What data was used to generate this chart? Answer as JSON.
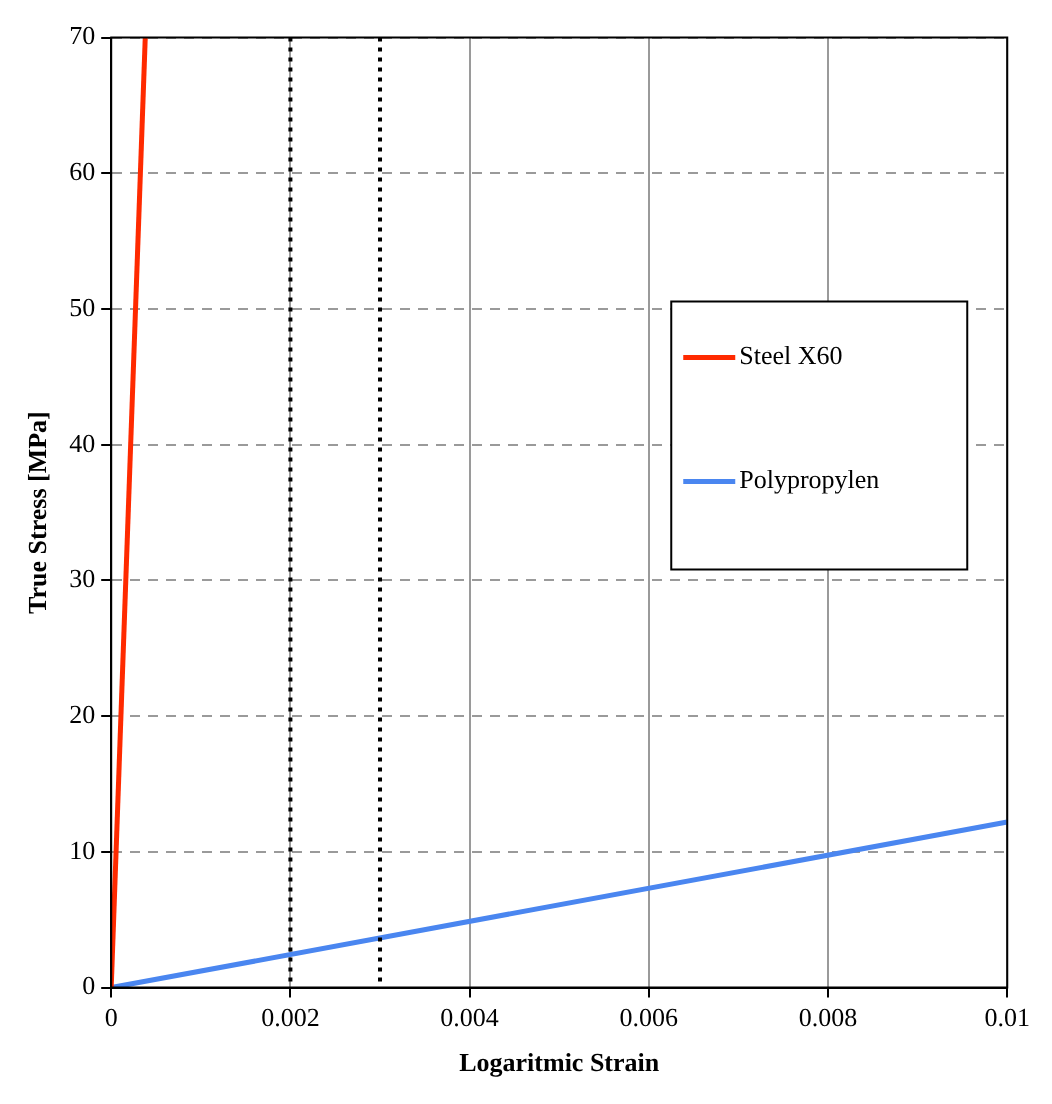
{
  "chart_data": {
    "type": "line",
    "xlabel": "Logaritmic Strain",
    "ylabel": "True Stress [MPa]",
    "xlim": [
      0,
      0.01
    ],
    "xticks": [
      0,
      0.002,
      0.004,
      0.006,
      0.008,
      0.01
    ],
    "ylim": [
      0,
      70
    ],
    "yticks": [
      0,
      10,
      20,
      30,
      40,
      50,
      60,
      70
    ],
    "series": [
      {
        "name": "Steel X60",
        "color": "#ff2a00",
        "x": [
          0,
          0.00038
        ],
        "values": [
          0,
          70
        ]
      },
      {
        "name": "Polypropylen",
        "color": "#4a86f0",
        "x": [
          0,
          0.01
        ],
        "values": [
          0,
          12.2
        ]
      }
    ],
    "ref_lines": [
      {
        "axis": "x",
        "value": 0.002,
        "color": "#000000",
        "line_style": "dotted"
      },
      {
        "axis": "x",
        "value": 0.003,
        "color": "#000000",
        "line_style": "dotted"
      }
    ],
    "grid": true,
    "legend": "right",
    "marker": "none",
    "line_style": "solid"
  }
}
